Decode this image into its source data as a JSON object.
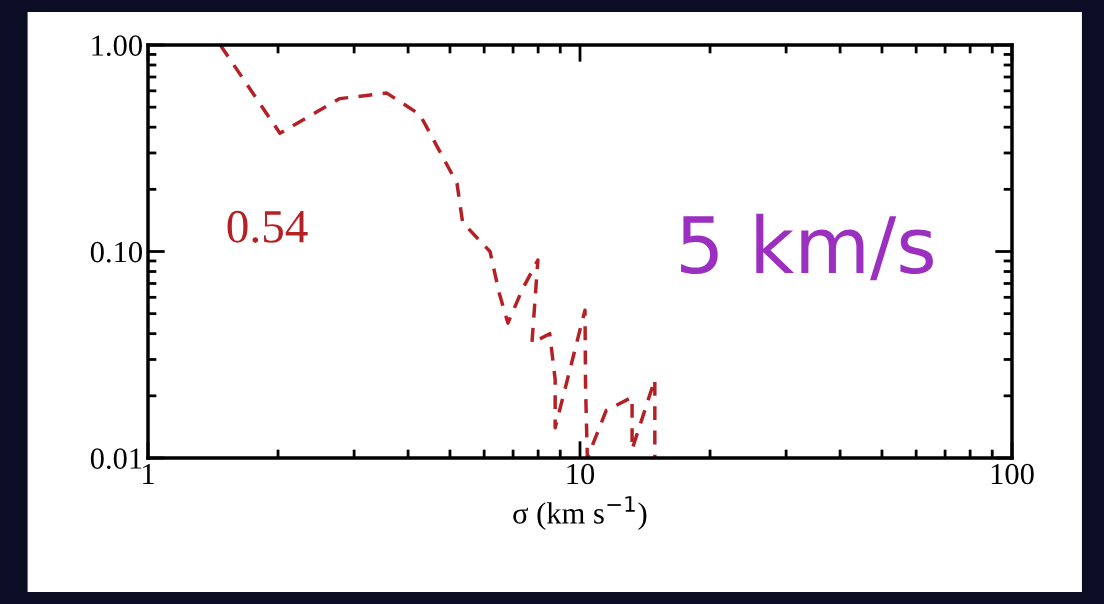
{
  "chart_data": {
    "type": "line",
    "xlabel": "σ (km s$^{−1}$)",
    "log": "xy",
    "xlim": [
      1,
      100
    ],
    "ylim": [
      0.01,
      1
    ],
    "xticks": [
      1,
      10,
      100
    ],
    "yticks": [
      {
        "value": 1,
        "label": "1.00"
      },
      {
        "value": 0.1,
        "label": "0.10"
      },
      {
        "value": 0.01,
        "label": "0.01"
      }
    ],
    "series": [
      {
        "color": "#b52025",
        "x": [
          1.47,
          2.02,
          2.78,
          3.57,
          4.26,
          5.19,
          5.35,
          6.19,
          6.5,
          6.81,
          7.34,
          7.99,
          7.74,
          8.51,
          8.76,
          8.76,
          10.27,
          10.3,
          10.4,
          11.5,
          13.2,
          13.2,
          14.9,
          14.9
        ],
        "values": [
          1.0,
          0.374,
          0.55,
          0.585,
          0.46,
          0.214,
          0.138,
          0.1,
          0.063,
          0.045,
          0.065,
          0.091,
          0.036,
          0.04,
          0.024,
          0.014,
          0.052,
          0.022,
          0.01,
          0.017,
          0.0197,
          0.011,
          0.024,
          0.01
        ]
      }
    ],
    "line_style": "dashed",
    "grid": false,
    "legend": false,
    "annotations": [
      "0.54",
      "5 km/s"
    ]
  }
}
